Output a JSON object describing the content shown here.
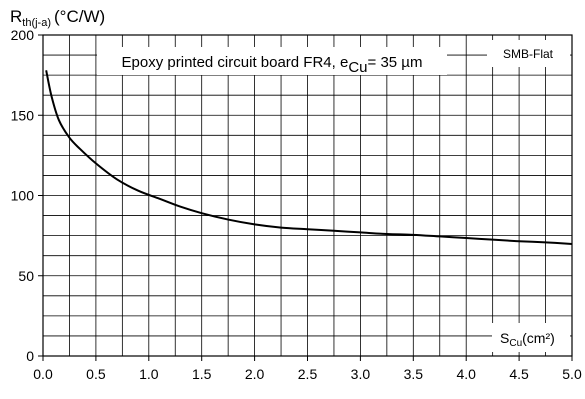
{
  "chart_data": {
    "type": "line",
    "ylabel_main": "R",
    "ylabel_sub": "th(j-a)",
    "ylabel_unit": "(°C/W)",
    "xlabel_main": "S",
    "xlabel_sub": "Cu",
    "xlabel_unit": "(cm²)",
    "annotation_main": "Epoxy printed circuit board FR4, e",
    "annotation_sub": "Cu",
    "annotation_rest": "= 35 µm",
    "badge": "SMB-Flat",
    "xlim": [
      0,
      5
    ],
    "ylim": [
      0,
      200
    ],
    "xticks": [
      0.0,
      0.5,
      1.0,
      1.5,
      2.0,
      2.5,
      3.0,
      3.5,
      4.0,
      4.5,
      5.0
    ],
    "yticks": [
      0,
      50,
      100,
      150,
      200
    ],
    "xtick_labels": [
      "0.0",
      "0.5",
      "1.0",
      "1.5",
      "2.0",
      "2.5",
      "3.0",
      "3.5",
      "4.0",
      "4.5",
      "5.0"
    ],
    "ytick_labels": [
      "0",
      "50",
      "100",
      "150",
      "200"
    ],
    "grid": true,
    "series": [
      {
        "x": [
          0.03,
          0.08,
          0.15,
          0.25,
          0.35,
          0.5,
          0.7,
          0.9,
          1.1,
          1.3,
          1.5,
          1.75,
          2.0,
          2.25,
          2.5,
          2.75,
          3.0,
          3.25,
          3.5,
          3.75,
          4.0,
          4.25,
          4.5,
          4.75,
          5.0
        ],
        "y": [
          178,
          162,
          147,
          136,
          129,
          120,
          110,
          103,
          98,
          93,
          89,
          85,
          82,
          80,
          79,
          78,
          77,
          76,
          75.5,
          74.5,
          73.5,
          72.5,
          71.5,
          70.8,
          69.8
        ]
      }
    ]
  },
  "colors": {
    "line": "#000000",
    "grid": "#000000",
    "background": "#ffffff"
  }
}
